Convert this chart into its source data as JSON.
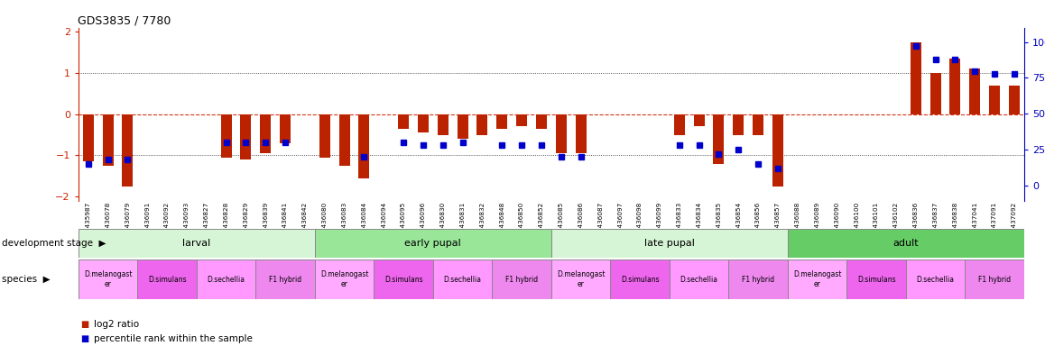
{
  "title": "GDS3835 / 7780",
  "samples": [
    "GSM435987",
    "GSM436078",
    "GSM436079",
    "GSM436091",
    "GSM436092",
    "GSM436093",
    "GSM436827",
    "GSM436828",
    "GSM436829",
    "GSM436839",
    "GSM436841",
    "GSM436842",
    "GSM436080",
    "GSM436083",
    "GSM436084",
    "GSM436094",
    "GSM436095",
    "GSM436096",
    "GSM436830",
    "GSM436831",
    "GSM436832",
    "GSM436848",
    "GSM436850",
    "GSM436852",
    "GSM436085",
    "GSM436086",
    "GSM436087",
    "GSM436097",
    "GSM436098",
    "GSM436099",
    "GSM436833",
    "GSM436834",
    "GSM436835",
    "GSM436854",
    "GSM436856",
    "GSM436857",
    "GSM436088",
    "GSM436089",
    "GSM436090",
    "GSM436100",
    "GSM436101",
    "GSM436102",
    "GSM436836",
    "GSM436837",
    "GSM436838",
    "GSM437041",
    "GSM437091",
    "GSM437092"
  ],
  "log2_ratio": [
    -1.15,
    -1.25,
    -1.75,
    0.0,
    0.0,
    0.0,
    0.0,
    -1.05,
    -1.1,
    -0.95,
    -0.7,
    0.0,
    -1.05,
    -1.25,
    -1.55,
    0.0,
    -0.35,
    -0.45,
    -0.5,
    -0.6,
    -0.5,
    -0.35,
    -0.3,
    -0.35,
    -0.95,
    -0.95,
    0.0,
    0.0,
    0.0,
    0.0,
    -0.5,
    -0.3,
    -1.2,
    -0.5,
    -0.5,
    -1.75,
    0.0,
    0.0,
    0.0,
    0.0,
    0.0,
    0.0,
    1.75,
    1.0,
    1.35,
    1.1,
    0.7,
    0.7
  ],
  "percentile": [
    15,
    18,
    18,
    null,
    null,
    null,
    null,
    30,
    30,
    30,
    30,
    null,
    null,
    null,
    20,
    null,
    30,
    28,
    28,
    30,
    null,
    28,
    28,
    28,
    20,
    20,
    null,
    null,
    null,
    null,
    28,
    28,
    22,
    25,
    15,
    12,
    null,
    null,
    null,
    null,
    null,
    null,
    97,
    88,
    88,
    80,
    78,
    78
  ],
  "dev_stages": [
    {
      "label": "larval",
      "start": 0,
      "end": 11,
      "color": "#d6f5d6"
    },
    {
      "label": "early pupal",
      "start": 12,
      "end": 23,
      "color": "#99e699"
    },
    {
      "label": "late pupal",
      "start": 24,
      "end": 35,
      "color": "#d6f5d6"
    },
    {
      "label": "adult",
      "start": 36,
      "end": 47,
      "color": "#66cc66"
    }
  ],
  "species_blocks": [
    {
      "label": "D.melanogast\ner",
      "start": 0,
      "end": 2,
      "color": "#ffaaff"
    },
    {
      "label": "D.simulans",
      "start": 3,
      "end": 5,
      "color": "#ee66ee"
    },
    {
      "label": "D.sechellia",
      "start": 6,
      "end": 8,
      "color": "#ff99ff"
    },
    {
      "label": "F1 hybrid",
      "start": 9,
      "end": 11,
      "color": "#ee88ee"
    },
    {
      "label": "D.melanogast\ner",
      "start": 12,
      "end": 14,
      "color": "#ffaaff"
    },
    {
      "label": "D.simulans",
      "start": 15,
      "end": 17,
      "color": "#ee66ee"
    },
    {
      "label": "D.sechellia",
      "start": 18,
      "end": 20,
      "color": "#ff99ff"
    },
    {
      "label": "F1 hybrid",
      "start": 21,
      "end": 23,
      "color": "#ee88ee"
    },
    {
      "label": "D.melanogast\ner",
      "start": 24,
      "end": 26,
      "color": "#ffaaff"
    },
    {
      "label": "D.simulans",
      "start": 27,
      "end": 29,
      "color": "#ee66ee"
    },
    {
      "label": "D.sechellia",
      "start": 30,
      "end": 32,
      "color": "#ff99ff"
    },
    {
      "label": "F1 hybrid",
      "start": 33,
      "end": 35,
      "color": "#ee88ee"
    },
    {
      "label": "D.melanogast\ner",
      "start": 36,
      "end": 38,
      "color": "#ffaaff"
    },
    {
      "label": "D.simulans",
      "start": 39,
      "end": 41,
      "color": "#ee66ee"
    },
    {
      "label": "D.sechellia",
      "start": 42,
      "end": 44,
      "color": "#ff99ff"
    },
    {
      "label": "F1 hybrid",
      "start": 45,
      "end": 47,
      "color": "#ee88ee"
    }
  ],
  "ylim_left": [
    -2.1,
    2.1
  ],
  "ylim_right": [
    -10.5,
    110
  ],
  "yticks_left": [
    -2,
    -1,
    0,
    1,
    2
  ],
  "yticks_right": [
    0,
    25,
    50,
    75,
    100
  ],
  "bar_color": "#bb2200",
  "dot_color": "#0000cc",
  "bg_color": "#ffffff",
  "zero_line_color": "#cc2200",
  "grid_line_color": "#222222",
  "left_axis_color": "#cc2200",
  "right_axis_color": "#0000bb"
}
